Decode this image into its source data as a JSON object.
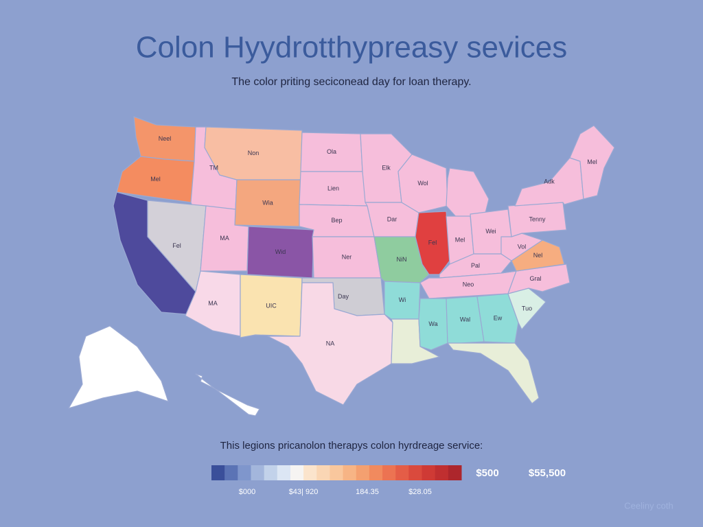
{
  "title": "Colon Hyydrotthypreasy sevices",
  "subtitle": "The color priting seciconead day for loan therapy.",
  "states": [
    {
      "label": "Neel",
      "color": "#f4956a"
    },
    {
      "label": "Mel",
      "color": "#f48c60"
    },
    {
      "label": "TM",
      "color": "#f6bedb"
    },
    {
      "label": "Non",
      "color": "#f8bea3"
    },
    {
      "label": "Wia",
      "color": "#f4a77f"
    },
    {
      "color": "#4e4a9c"
    },
    {
      "label": "Fel",
      "color": "#d3d0d8"
    },
    {
      "label": "MA",
      "color": "#f6bedb"
    },
    {
      "label": "Wid",
      "color": "#8a55a6"
    },
    {
      "label": "MA",
      "color": "#f8d9e8"
    },
    {
      "label": "UIC",
      "color": "#fae3b0"
    },
    {
      "label": "Ola",
      "color": "#f6bedb"
    },
    {
      "label": "Lien",
      "color": "#f6bedb"
    },
    {
      "label": "Bep",
      "color": "#f6bedb"
    },
    {
      "label": "Ner",
      "color": "#f6bedb"
    },
    {
      "label": "Day",
      "color": "#cfcdd4"
    },
    {
      "label": "NA",
      "color": "#f8d9e6"
    },
    {
      "label": "Elk",
      "color": "#f6bedb"
    },
    {
      "label": "Dar",
      "color": "#f6bedb"
    },
    {
      "label": "NiN",
      "color": "#8fcc9f"
    },
    {
      "label": "Wi",
      "color": "#8fdcd8"
    },
    {
      "color": "#e8eed8"
    },
    {
      "label": "Wol",
      "color": "#f6bedb"
    },
    {
      "color": "#f6bedb"
    },
    {
      "label": "Fel",
      "color": "#e04040"
    },
    {
      "label": "Mel",
      "color": "#f6bedb"
    },
    {
      "label": "Wei",
      "color": "#f6bedb"
    },
    {
      "label": "Pal",
      "color": "#f6bedb"
    },
    {
      "label": "Neo",
      "color": "#f6bedb"
    },
    {
      "label": "Wa",
      "color": "#8fdcd8"
    },
    {
      "label": "Wal",
      "color": "#8fdcd8"
    },
    {
      "label": "Ew",
      "color": "#8fdcd8"
    },
    {
      "color": "#e8eed8"
    },
    {
      "label": "Tuo",
      "color": "#d9efe5"
    },
    {
      "label": "Gral",
      "color": "#f6bedb"
    },
    {
      "label": "Nel",
      "color": "#f6ad80"
    },
    {
      "label": "Vol",
      "color": "#f6bedb"
    },
    {
      "label": "Tenny",
      "color": "#f6bedb"
    },
    {
      "label": "Adk",
      "color": "#f6bedb"
    },
    {
      "label": "Mel",
      "color": "#f6bedb"
    },
    {
      "color": "#ffffff"
    },
    {
      "color": "#ffffff"
    }
  ],
  "legend": {
    "title": "This legions pricanolon therapys colon hyrdreage service:",
    "colors": [
      "#3a4f9a",
      "#5b73b5",
      "#7f96cc",
      "#a3b6dc",
      "#c2d2ea",
      "#dce6f4",
      "#f6f4f2",
      "#fbe4cc",
      "#fad6b4",
      "#f9c79d",
      "#f7b485",
      "#f4a070",
      "#f18a5e",
      "#ec7352",
      "#e45d47",
      "#da4a3d",
      "#cf3a35",
      "#c02f30",
      "#ad262c"
    ],
    "end_labels": [
      "$500",
      "$55,500"
    ],
    "tick_labels": [
      "$000",
      "$43| 920",
      "184.35",
      "$28.05"
    ]
  },
  "watermark": "Ceeliny coth"
}
